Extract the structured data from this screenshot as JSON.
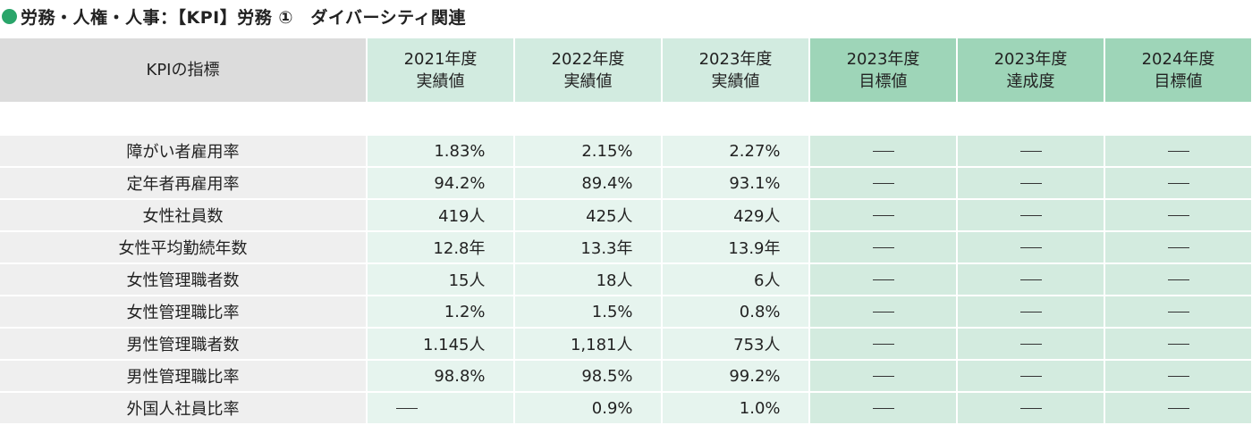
{
  "title": {
    "bullet_color": "#2aa56a",
    "text": "労務・人権・人事：【KPI】労務 ①　ダイバーシティ関連"
  },
  "table": {
    "headers": [
      {
        "line1": "KPIの指標",
        "line2": ""
      },
      {
        "line1": "2021年度",
        "line2": "実績値"
      },
      {
        "line1": "2022年度",
        "line2": "実績値"
      },
      {
        "line1": "2023年度",
        "line2": "実績値"
      },
      {
        "line1": "2023年度",
        "line2": "目標値"
      },
      {
        "line1": "2023年度",
        "line2": "達成度"
      },
      {
        "line1": "2024年度",
        "line2": "目標値"
      }
    ],
    "rows": [
      {
        "label": "障がい者雇用率",
        "y2021": "1.83%",
        "y2022": "2.15%",
        "y2023": "2.27%",
        "target2023": "—",
        "achievement2023": "—",
        "target2024": "—"
      },
      {
        "label": "定年者再雇用率",
        "y2021": "94.2%",
        "y2022": "89.4%",
        "y2023": "93.1%",
        "target2023": "—",
        "achievement2023": "—",
        "target2024": "—"
      },
      {
        "label": "女性社員数",
        "y2021": "419人",
        "y2022": "425人",
        "y2023": "429人",
        "target2023": "—",
        "achievement2023": "—",
        "target2024": "—"
      },
      {
        "label": "女性平均勤続年数",
        "y2021": "12.8年",
        "y2022": "13.3年",
        "y2023": "13.9年",
        "target2023": "—",
        "achievement2023": "—",
        "target2024": "—"
      },
      {
        "label": "女性管理職者数",
        "y2021": "15人",
        "y2022": "18人",
        "y2023": "6人",
        "target2023": "—",
        "achievement2023": "—",
        "target2024": "—"
      },
      {
        "label": "女性管理職比率",
        "y2021": "1.2%",
        "y2022": "1.5%",
        "y2023": "0.8%",
        "target2023": "—",
        "achievement2023": "—",
        "target2024": "—"
      },
      {
        "label": "男性管理職者数",
        "y2021": "1.145人",
        "y2022": "1,181人",
        "y2023": "753人",
        "target2023": "—",
        "achievement2023": "—",
        "target2024": "—"
      },
      {
        "label": "男性管理職比率",
        "y2021": "98.8%",
        "y2022": "98.5%",
        "y2023": "99.2%",
        "target2023": "—",
        "achievement2023": "—",
        "target2024": "—"
      },
      {
        "label": "外国人社員比率",
        "y2021": "—",
        "y2022": "0.9%",
        "y2023": "1.0%",
        "target2023": "—",
        "achievement2023": "—",
        "target2024": "—"
      }
    ]
  }
}
